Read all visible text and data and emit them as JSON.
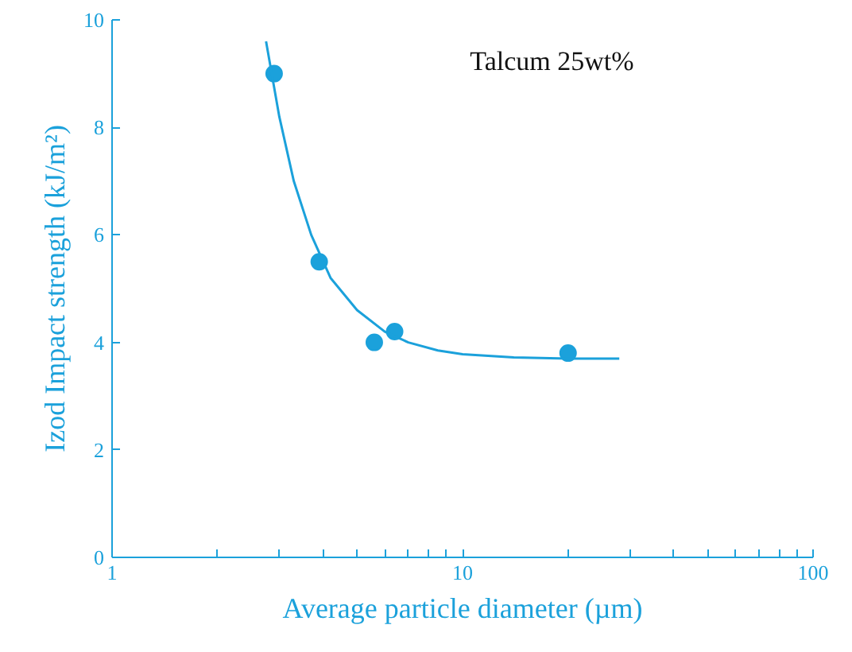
{
  "chart_data": {
    "type": "scatter",
    "xlabel": "Average particle diameter (µm)",
    "ylabel": "Izod Impact strength (kJ/m²)",
    "annotations": [
      "Talcum 25wt%"
    ],
    "log": "x",
    "xlim": [
      1,
      100
    ],
    "xticks": [
      1,
      {
        "value": 2,
        "label": null
      },
      {
        "value": 3,
        "label": null
      },
      {
        "value": 4,
        "label": null
      },
      {
        "value": 5,
        "label": null
      },
      {
        "value": 6,
        "label": null
      },
      {
        "value": 7,
        "label": null
      },
      {
        "value": 8,
        "label": null
      },
      {
        "value": 9,
        "label": null
      },
      10,
      {
        "value": 20,
        "label": null
      },
      {
        "value": 30,
        "label": null
      },
      {
        "value": 40,
        "label": null
      },
      {
        "value": 50,
        "label": null
      },
      {
        "value": 60,
        "label": null
      },
      {
        "value": 70,
        "label": null
      },
      {
        "value": 80,
        "label": null
      },
      {
        "value": 90,
        "label": null
      },
      100
    ],
    "ylim": [
      0,
      10
    ],
    "yticks": [
      0,
      2,
      4,
      6,
      8,
      10
    ],
    "grid": false,
    "marker": "circle",
    "series": [
      {
        "color": "#1ba1db",
        "x": [
          2.9,
          3.9,
          5.6,
          6.4,
          20
        ],
        "values": [
          9.0,
          5.5,
          4.0,
          4.2,
          3.8
        ]
      },
      {
        "type": "line",
        "color": "#1ba1db",
        "marker": "none",
        "x": [
          2.75,
          3.0,
          3.3,
          3.7,
          4.2,
          5,
          6,
          7,
          8.5,
          10,
          14,
          20,
          28
        ],
        "values": [
          9.6,
          8.2,
          7.0,
          6.0,
          5.2,
          4.6,
          4.2,
          4.0,
          3.85,
          3.78,
          3.72,
          3.7,
          3.7
        ]
      }
    ]
  }
}
